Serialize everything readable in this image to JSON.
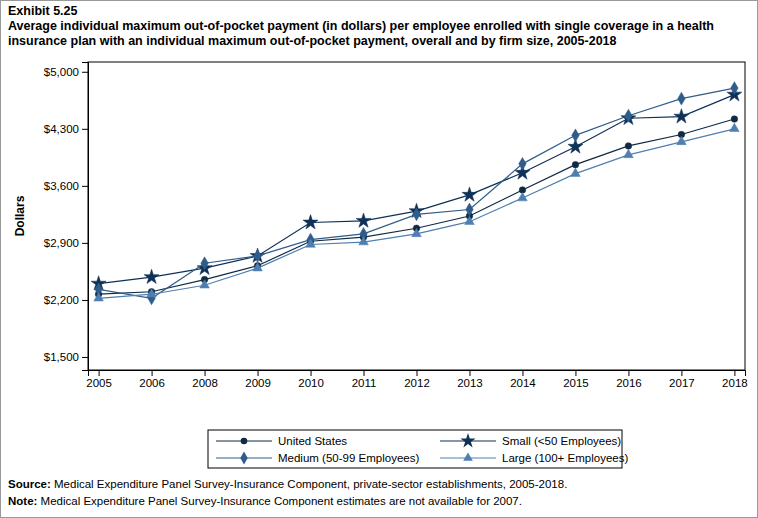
{
  "chart_data": {
    "type": "line",
    "title": "Exhibit 5.25",
    "subtitle": "Average individual maximum out-of-pocket payment (in dollars) per employee enrolled with single coverage in a health insurance plan with an individual maximum out-of-pocket payment, overall and by firm size, 2005-2018",
    "y_label": "Dollars",
    "categories": [
      "2005",
      "2006",
      "2008",
      "2009",
      "2010",
      "2011",
      "2012",
      "2013",
      "2014",
      "2015",
      "2016",
      "2017",
      "2018"
    ],
    "series": [
      {
        "name": "United States",
        "color": "#102a43",
        "marker": "circle",
        "values": [
          2270,
          2300,
          2450,
          2620,
          2920,
          2970,
          3080,
          3230,
          3550,
          3860,
          4090,
          4230,
          4420
        ]
      },
      {
        "name": "Small (<50 Employees)",
        "color": "#0f3057",
        "marker": "star",
        "values": [
          2400,
          2480,
          2590,
          2740,
          3150,
          3170,
          3290,
          3490,
          3760,
          4080,
          4430,
          4450,
          4720
        ]
      },
      {
        "name": "Medium (50-99 Employees)",
        "color": "#2f5d8a",
        "marker": "diamond",
        "values": [
          2330,
          2220,
          2650,
          2740,
          2940,
          3010,
          3250,
          3310,
          3870,
          4220,
          4460,
          4670,
          4800
        ]
      },
      {
        "name": "Large (100+ Employees)",
        "color": "#4f7fb0",
        "marker": "triangle",
        "values": [
          2220,
          2270,
          2380,
          2590,
          2880,
          2910,
          3010,
          3160,
          3450,
          3750,
          3980,
          4140,
          4300
        ]
      }
    ],
    "ylim": [
      1340,
      5120
    ],
    "yticks": [
      {
        "value": 1500,
        "label": "$1,500"
      },
      {
        "value": 2200,
        "label": "$2,200"
      },
      {
        "value": 2900,
        "label": "$2,900"
      },
      {
        "value": 3600,
        "label": "$3,600"
      },
      {
        "value": 4300,
        "label": "$4,300"
      },
      {
        "value": 5000,
        "label": "$5,000"
      }
    ],
    "grid": false,
    "legend": "bottom",
    "notes": [
      {
        "label": "Source:",
        "text": " Medical Expenditure Panel Survey-Insurance Component, private-sector establishments, 2005-2018."
      },
      {
        "label": "Note:",
        "text": " Medical Expenditure Panel Survey-Insurance Component estimates are not available for 2007."
      }
    ]
  }
}
